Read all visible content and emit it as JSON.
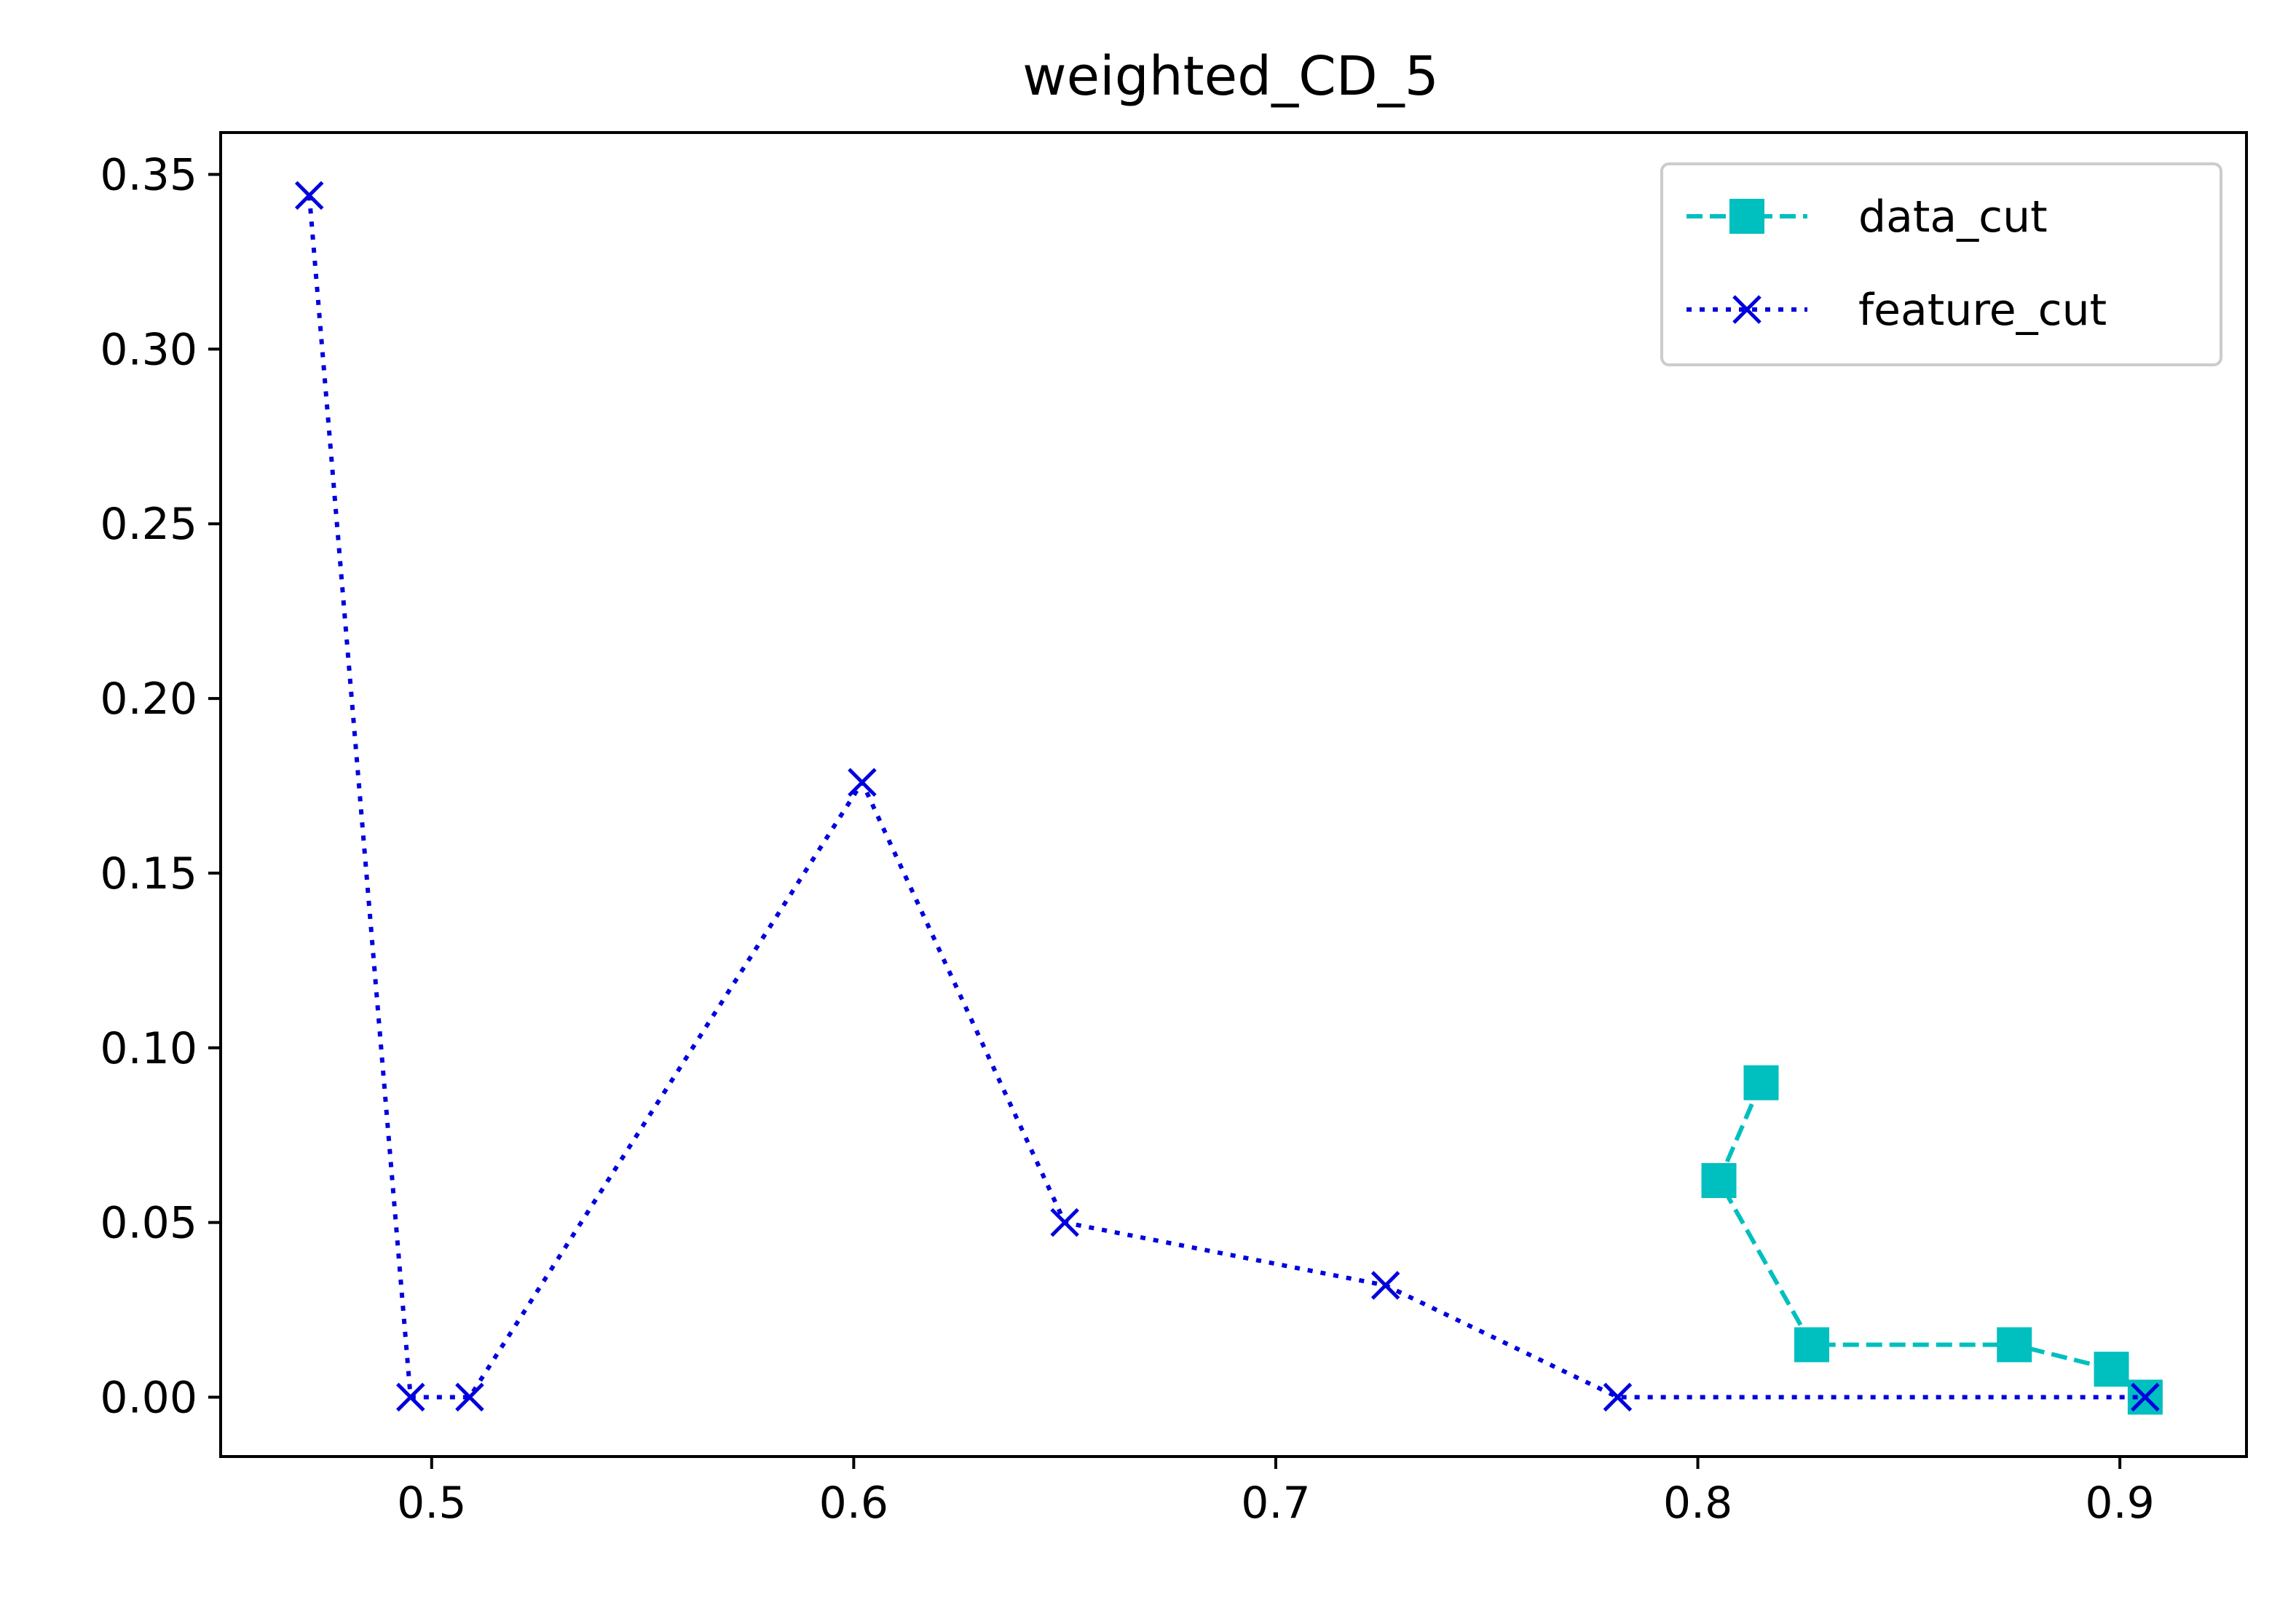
{
  "chart_data": {
    "type": "line",
    "title": "weighted_CD_5",
    "xlabel": "",
    "ylabel": "",
    "xlim": [
      0.45,
      0.93
    ],
    "ylim": [
      -0.017,
      0.362
    ],
    "xticks": [
      0.5,
      0.6,
      0.7,
      0.8,
      0.9
    ],
    "xtick_labels": [
      "0.5",
      "0.6",
      "0.7",
      "0.8",
      "0.9"
    ],
    "yticks": [
      0.0,
      0.05,
      0.1,
      0.15,
      0.2,
      0.25,
      0.3,
      0.35
    ],
    "ytick_labels": [
      "0.00",
      "0.05",
      "0.10",
      "0.15",
      "0.20",
      "0.25",
      "0.30",
      "0.35"
    ],
    "grid": false,
    "legend_position": "top-right",
    "series": [
      {
        "name": "data_cut",
        "color": "#00bfbf",
        "linestyle": "dashed",
        "marker": "square",
        "x": [
          0.815,
          0.805,
          0.827,
          0.875,
          0.898,
          0.906
        ],
        "y": [
          0.09,
          0.062,
          0.015,
          0.015,
          0.008,
          0.0
        ]
      },
      {
        "name": "feature_cut",
        "color": "#0000dd",
        "linestyle": "dotted",
        "marker": "x",
        "x": [
          0.471,
          0.495,
          0.509,
          0.602,
          0.65,
          0.726,
          0.781,
          0.906
        ],
        "y": [
          0.344,
          0.0,
          0.0,
          0.176,
          0.05,
          0.032,
          0.0,
          0.0
        ]
      }
    ]
  }
}
